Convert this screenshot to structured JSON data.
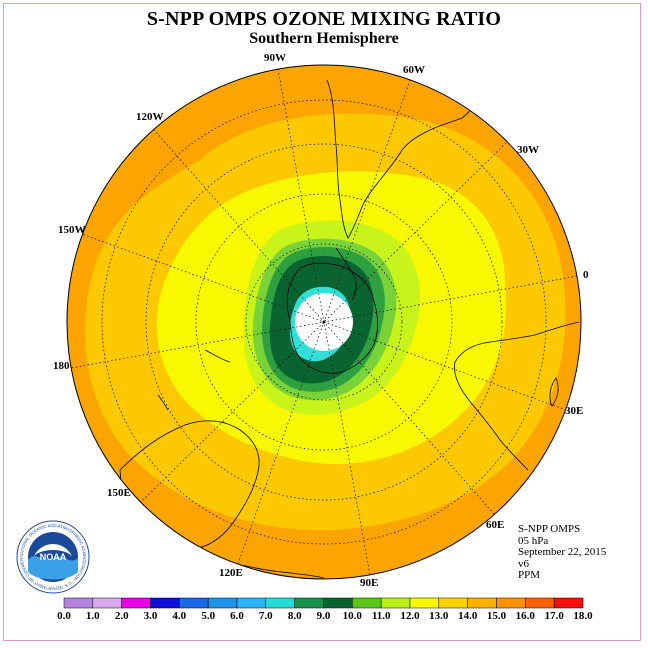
{
  "title": "S-NPP OMPS OZONE MIXING RATIO",
  "subtitle": "Southern Hemisphere",
  "longitude_labels": {
    "w90": "90W",
    "w60": "60W",
    "w30": "30W",
    "w120": "120W",
    "w150": "150W",
    "e0": "0",
    "e180": "180",
    "e30": "30E",
    "e150": "150E",
    "e60": "60E",
    "e120": "120E",
    "e90": "90E"
  },
  "info": {
    "instrument": "S-NPP OMPS",
    "level": "05 hPa",
    "date": "September 22, 2015",
    "version": "v6",
    "units": "PPM"
  },
  "logo": {
    "text": "NOAA",
    "ring_text": "NATIONAL OCEANIC AND ATMOSPHERIC ADMINISTRATION · U.S. DEPARTMENT OF COMMERCE"
  },
  "colorbar": {
    "ticks": [
      "0.0",
      "1.0",
      "2.0",
      "3.0",
      "4.0",
      "5.0",
      "6.0",
      "7.0",
      "8.0",
      "9.0",
      "10.0",
      "11.0",
      "12.0",
      "13.0",
      "14.0",
      "15.0",
      "16.0",
      "17.0",
      "18.0"
    ],
    "colors": [
      "#b482e0",
      "#d9a8ec",
      "#e800e8",
      "#1010d8",
      "#1868e8",
      "#1c94ec",
      "#28b4f0",
      "#24dcd8",
      "#18904a",
      "#0a6432",
      "#58c818",
      "#b8f018",
      "#f8f800",
      "#fcd200",
      "#fcb000",
      "#fc9200",
      "#fc6000",
      "#f81010",
      "#ff0000",
      "#8c6038"
    ]
  },
  "colors": {
    "frame": "#d89ad0",
    "band_15": "#fca400",
    "band_14": "#fcc800",
    "band_13": "#f8f800",
    "band_12": "#c8f41c",
    "band_11": "#78d238",
    "band_10": "#2ea040",
    "band_9": "#0a6432",
    "band_7": "#30e0d8",
    "no_data": "#ffffff"
  }
}
